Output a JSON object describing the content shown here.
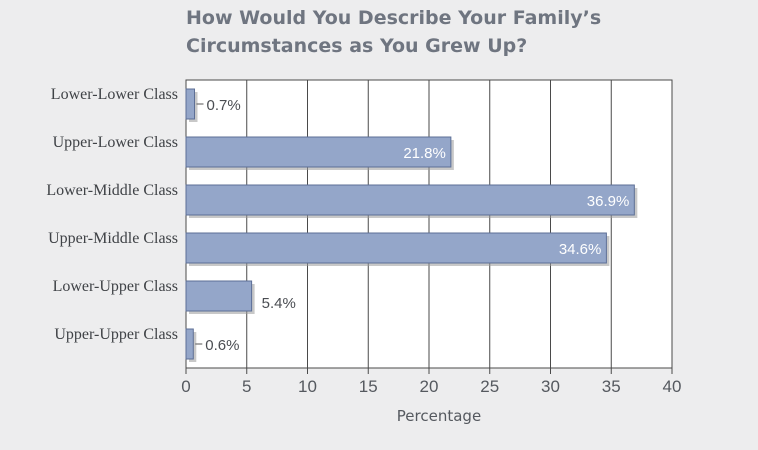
{
  "title_lines": [
    "How Would You Describe Your Family’s",
    "Circumstances as You Grew Up?"
  ],
  "colors": {
    "background": "#ededee",
    "plot_background": "#ffffff",
    "bar_fill": "#94a6c9",
    "bar_stroke": "#5d6f96",
    "bar_shadow": "#9a9a9a",
    "title": "#6f7580"
  },
  "chart_data": {
    "type": "bar",
    "orientation": "horizontal",
    "title": "How Would You Describe Your Family’s Circumstances as You Grew Up?",
    "xlabel": "Percentage",
    "ylabel": "",
    "categories": [
      "Lower-Lower Class",
      "Upper-Lower Class",
      "Lower-Middle Class",
      "Upper-Middle Class",
      "Lower-Upper Class",
      "Upper-Upper Class"
    ],
    "values": [
      0.7,
      21.8,
      36.9,
      34.6,
      5.4,
      0.6
    ],
    "value_labels": [
      "0.7%",
      "21.8%",
      "36.9%",
      "34.6%",
      "5.4%",
      "0.6%"
    ],
    "xlim": [
      0,
      40
    ],
    "xticks": [
      0,
      5,
      10,
      15,
      20,
      25,
      30,
      35,
      40
    ],
    "grid": "vertical",
    "legend": "none"
  }
}
